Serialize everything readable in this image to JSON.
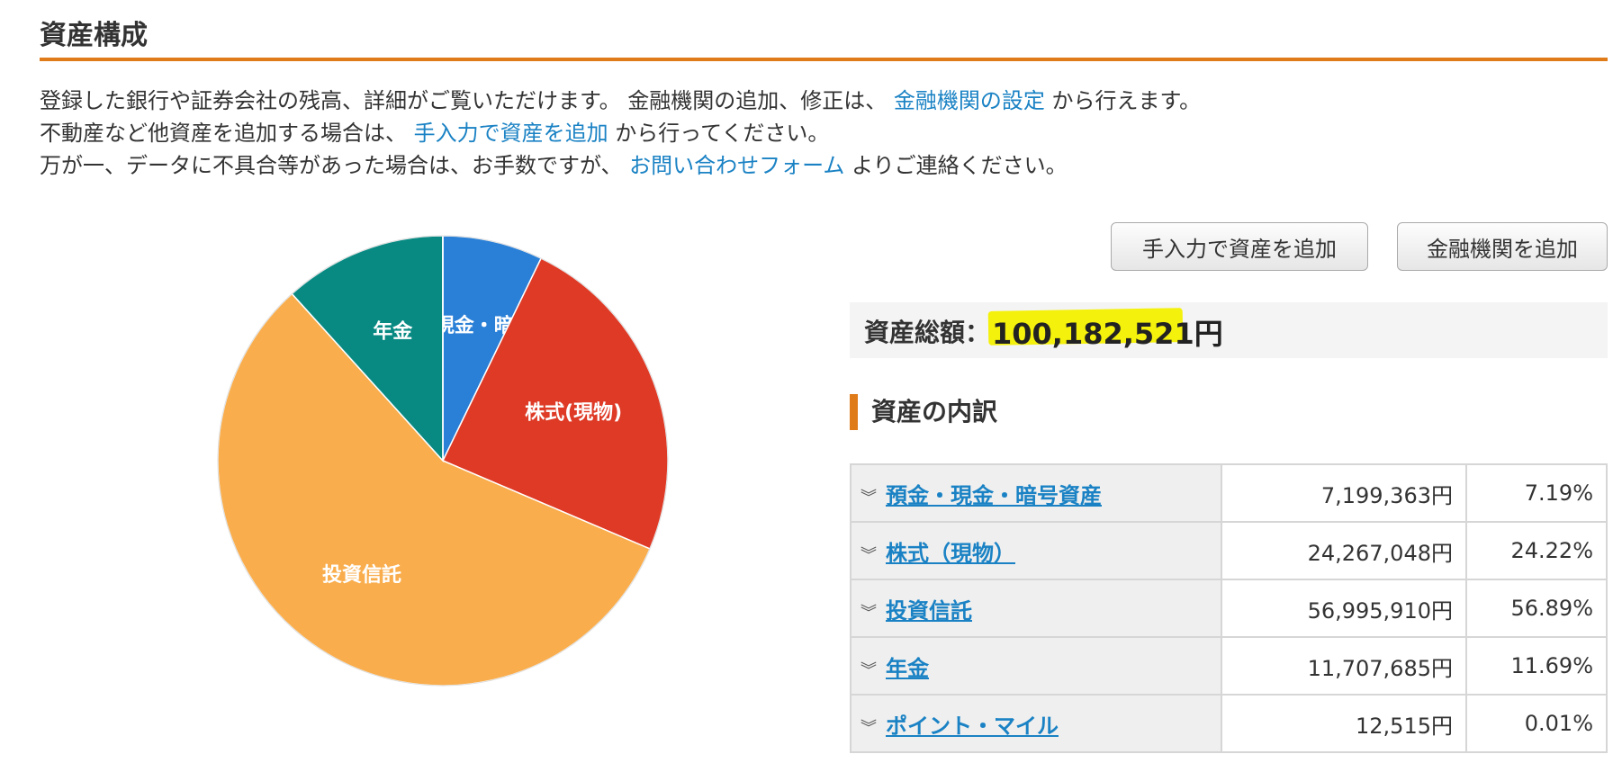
{
  "page": {
    "title": "資産構成",
    "intro_lines": [
      {
        "before": "登録した銀行や証券会社の残高、詳細がご覧いただけます。 金融機関の追加、修正は、 ",
        "link": "金融機関の設定",
        "after": " から行えます。"
      },
      {
        "before": "不動産など他資産を追加する場合は、 ",
        "link": "手入力で資産を追加",
        "after": " から行ってください。"
      },
      {
        "before": "万が一、データに不具合等があった場合は、お手数ですが、 ",
        "link": "お問い合わせフォーム",
        "after": " よりご連絡ください。"
      }
    ]
  },
  "buttons": {
    "manual_add": "手入力で資産を追加",
    "institution_add": "金融機関を追加"
  },
  "total": {
    "label": "資産総額：",
    "amount": "100,182,521円",
    "highlight_color": "#f4f10c"
  },
  "breakdown": {
    "title": "資産の内訳",
    "accent_color": "#e07b1a",
    "rows": [
      {
        "name": "預金・現金・暗号資産",
        "amount": "7,199,363円",
        "percent": "7.19%"
      },
      {
        "name": "株式（現物）",
        "amount": "24,267,048円",
        "percent": "24.22%"
      },
      {
        "name": "投資信託",
        "amount": "56,995,910円",
        "percent": "56.89%"
      },
      {
        "name": "年金",
        "amount": "11,707,685円",
        "percent": "11.69%"
      },
      {
        "name": "ポイント・マイル",
        "amount": "12,515円",
        "percent": "0.01%"
      }
    ]
  },
  "chart_data": {
    "type": "pie",
    "slices": [
      {
        "label": "預金・現金・暗号資産",
        "value": 7.19,
        "color": "#2a7fd6"
      },
      {
        "label": "株式(現物)",
        "value": 24.22,
        "color": "#de3a26"
      },
      {
        "label": "投資信託",
        "value": 56.89,
        "color": "#f9ad4c"
      },
      {
        "label": "年金",
        "value": 11.69,
        "color": "#088a83"
      },
      {
        "label": "",
        "value": 0.01,
        "color": "#555555"
      }
    ]
  }
}
